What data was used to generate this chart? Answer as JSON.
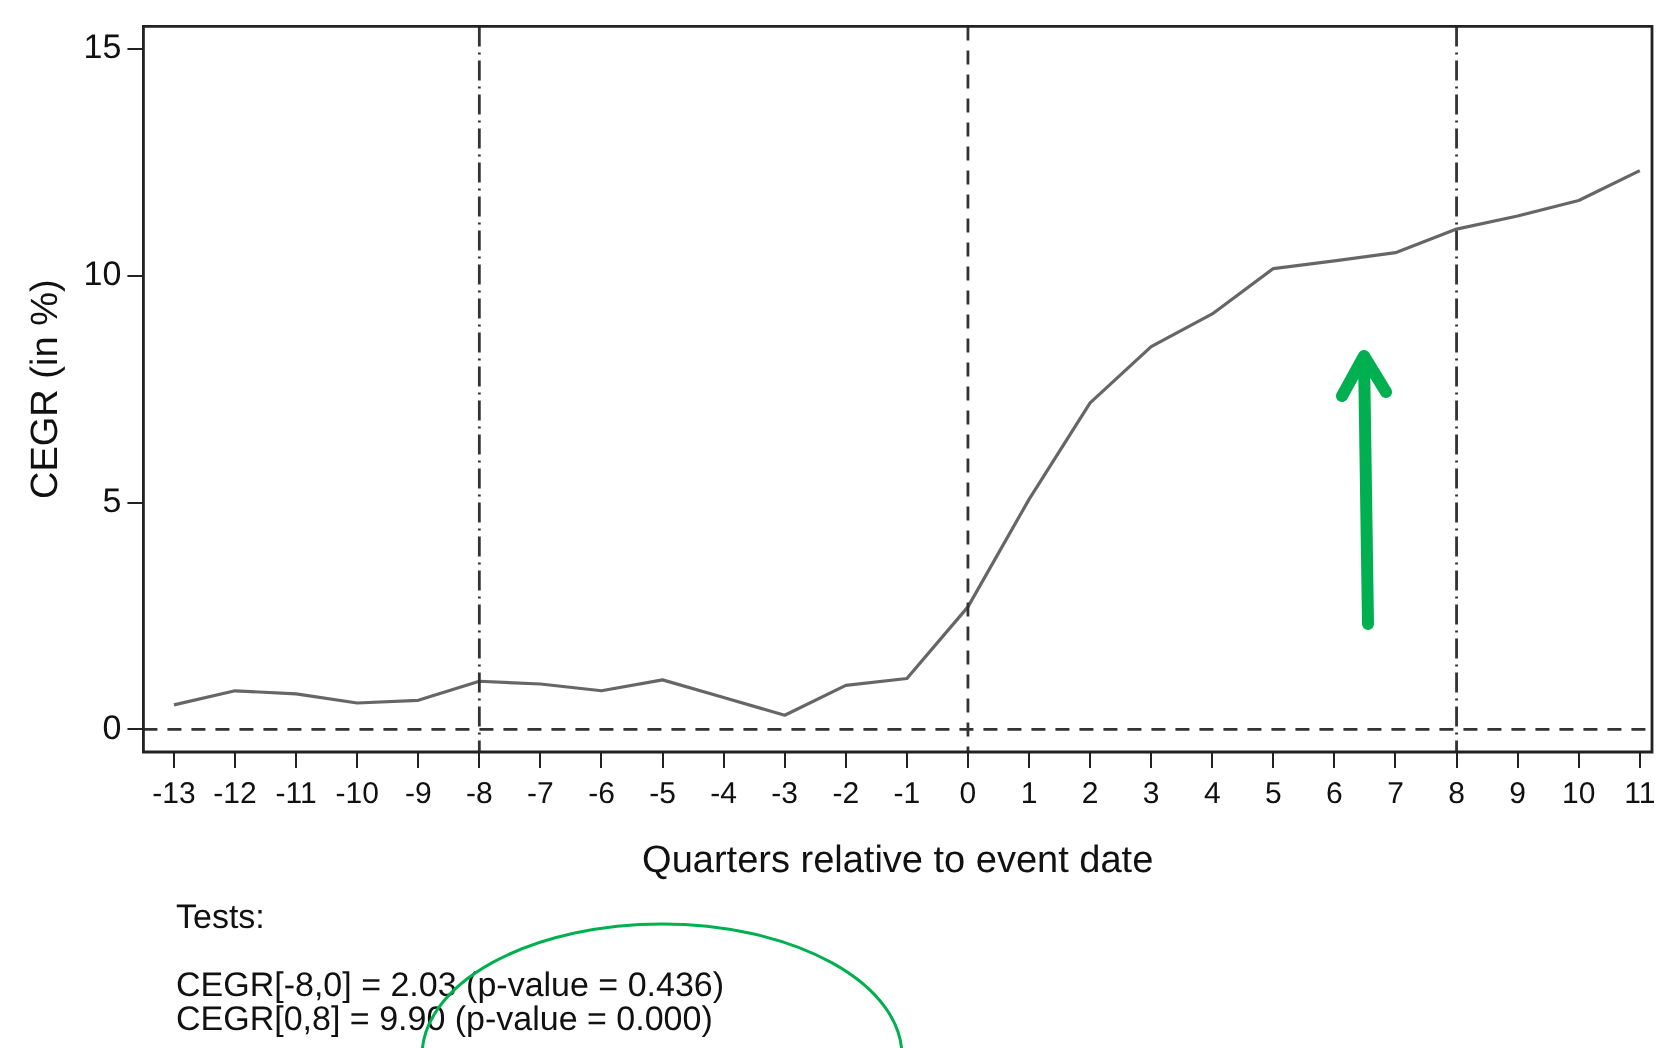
{
  "chart_data": {
    "type": "line",
    "xlabel": "Quarters relative to event date",
    "ylabel": "CEGR (in %)",
    "x": [
      -13,
      -12,
      -11,
      -10,
      -9,
      -8,
      -7,
      -6,
      -5,
      -4,
      -3,
      -2,
      -1,
      0,
      1,
      2,
      3,
      4,
      5,
      6,
      7,
      8,
      9,
      10,
      11
    ],
    "series": [
      {
        "color": "#666666",
        "values": [
          0.54,
          0.85,
          0.78,
          0.58,
          0.64,
          1.06,
          1.0,
          0.85,
          1.09,
          0.7,
          0.31,
          0.97,
          1.12,
          2.7,
          5.07,
          7.2,
          8.44,
          9.16,
          10.16,
          10.33,
          10.51,
          11.03,
          11.32,
          11.66,
          12.32
        ]
      }
    ],
    "xlim": [
      -13.5,
      11.2
    ],
    "ylim": [
      -0.5,
      15.5
    ],
    "xticks": [
      -13,
      -12,
      -11,
      -10,
      -9,
      -8,
      -7,
      -6,
      -5,
      -4,
      -3,
      -2,
      -1,
      0,
      1,
      2,
      3,
      4,
      5,
      6,
      7,
      8,
      9,
      10,
      11
    ],
    "yticks": [
      0,
      5,
      10,
      15
    ],
    "ref_lines": [
      {
        "axis": "y",
        "value": 0,
        "color": "#333333",
        "line_style": "dashed"
      },
      {
        "axis": "x",
        "value": 0,
        "color": "#333333",
        "line_style": "dashed"
      },
      {
        "axis": "x",
        "value": -8,
        "color": "#333333",
        "line_style": "dashdot"
      },
      {
        "axis": "x",
        "value": 8,
        "color": "#333333",
        "line_style": "dashdot"
      }
    ],
    "annotations": [
      "Tests:",
      "CEGR[-8,0] = 2.03 (p-value = 0.436)",
      "CEGR[0,8] = 9.90 (p-value = 0.000)"
    ],
    "grid": false,
    "legend": false,
    "marker": "none",
    "line_style": "solid"
  }
}
